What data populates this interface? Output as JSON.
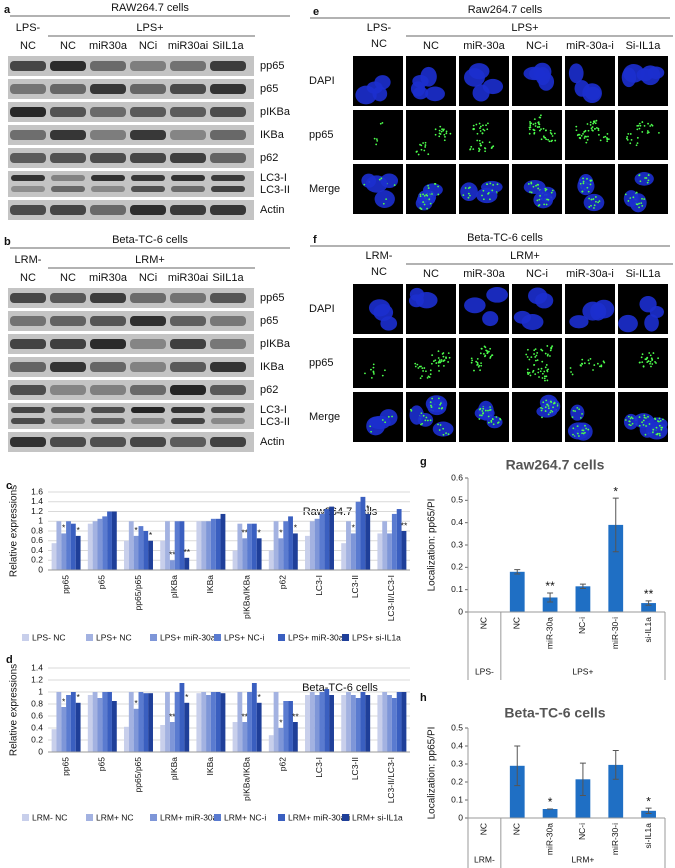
{
  "blots": [
    {
      "letter": "a",
      "title": "RAW264.7 cells",
      "group_labels": [
        "LPS-",
        "LPS+"
      ],
      "lanes": [
        "NC",
        "NC",
        "miR30a",
        "NCi",
        "miR30ai",
        "SiIL1a"
      ],
      "rows": [
        [
          "pp65"
        ],
        [
          "p65"
        ],
        [
          "pIKBa"
        ],
        [
          "IKBa"
        ],
        [
          "p62"
        ],
        [
          "LC3-I",
          "LC3-II"
        ],
        [
          "Actin"
        ]
      ]
    },
    {
      "letter": "b",
      "title": "Beta-TC-6 cells",
      "group_labels": [
        "LRM-",
        "LRM+"
      ],
      "lanes": [
        "NC",
        "NC",
        "miR30a",
        "NCi",
        "miR30ai",
        "SiIL1a"
      ],
      "rows": [
        [
          "pp65"
        ],
        [
          "p65"
        ],
        [
          "pIKBa"
        ],
        [
          "IKBa"
        ],
        [
          "p62"
        ],
        [
          "LC3-I",
          "LC3-II"
        ],
        [
          "Actin"
        ]
      ]
    }
  ],
  "microscopy": [
    {
      "letter": "e",
      "title": "Raw264.7 cells",
      "negative_label": [
        "LPS-",
        "NC"
      ],
      "positive_label": "LPS+",
      "columns": [
        "NC",
        "miR-30a",
        "NC-i",
        "miR-30a-i",
        "Si-IL1a"
      ],
      "rows": [
        "DAPI",
        "pp65",
        "Merge"
      ]
    },
    {
      "letter": "f",
      "title": "Beta-TC-6 cells",
      "negative_label": [
        "LRM-",
        "NC"
      ],
      "positive_label": "LRM+",
      "columns": [
        "NC",
        "miR-30a",
        "NC-i",
        "miR-30a-i",
        "Si-IL1a"
      ],
      "rows": [
        "DAPI",
        "pp65",
        "Merge"
      ]
    }
  ],
  "chart_data": [
    {
      "type": "bar",
      "letter": "c",
      "title": "Raw264.7 cells",
      "y_label": "Relative expressions",
      "categories": [
        "pp65",
        "p65",
        "pp65/p65",
        "pIKBa",
        "IKBa",
        "pIKBa/IKBa",
        "p62",
        "LC3-I",
        "LC3-II",
        "LC3-II/LC3-I"
      ],
      "ylim": [
        0,
        1.6
      ],
      "yticks": [
        0,
        0.2,
        0.4,
        0.6,
        0.8,
        1,
        1.2,
        1.4,
        1.6
      ],
      "grid": true,
      "series": [
        {
          "name": "LPS- NC",
          "color": "#c8cfeb",
          "values": [
            0.55,
            0.95,
            0.6,
            0.6,
            1.0,
            0.4,
            0.4,
            0.7,
            0.55,
            0.75
          ]
        },
        {
          "name": "LPS+ NC",
          "color": "#a3b2e1",
          "values": [
            1.0,
            1.0,
            1.0,
            1.0,
            1.0,
            0.95,
            1.0,
            1.0,
            1.0,
            1.0
          ]
        },
        {
          "name": "LPS+ miR-30a",
          "color": "#7e96d8",
          "values": [
            0.75,
            1.05,
            0.7,
            0.2,
            1.0,
            0.65,
            0.65,
            1.05,
            0.75,
            0.75
          ],
          "stars": [
            "*",
            null,
            "*",
            "**",
            null,
            "**",
            "*",
            null,
            "*",
            null
          ]
        },
        {
          "name": "LPS+ NC-i",
          "color": "#5a7bd0",
          "values": [
            1.0,
            1.1,
            0.9,
            1.0,
            1.05,
            0.95,
            1.0,
            1.15,
            1.4,
            1.15
          ]
        },
        {
          "name": "LPS+ miR-30a-i",
          "color": "#3a5fc0",
          "values": [
            0.95,
            1.2,
            0.8,
            1.0,
            1.05,
            0.95,
            1.1,
            1.25,
            1.5,
            1.25
          ]
        },
        {
          "name": "LPS+ si-IL1a",
          "color": "#1f3f99",
          "values": [
            0.7,
            1.2,
            0.6,
            0.25,
            1.15,
            0.65,
            0.75,
            1.3,
            1.15,
            0.8
          ],
          "stars": [
            "*",
            null,
            "*",
            "**",
            null,
            "*",
            "*",
            null,
            "*",
            "**"
          ]
        }
      ]
    },
    {
      "type": "bar",
      "letter": "d",
      "title": "Beta-TC-6 cells",
      "y_label": "Relative expressions",
      "categories": [
        "pp65",
        "p65",
        "pp65/p65",
        "pIKBa",
        "IKBa",
        "pIKBa/IKBa",
        "p62",
        "LC3-I",
        "LC3-II",
        "LC3-II/LC3-I"
      ],
      "ylim": [
        0,
        1.4
      ],
      "yticks": [
        0,
        0.2,
        0.4,
        0.6,
        0.8,
        1,
        1.2,
        1.4
      ],
      "grid": true,
      "series": [
        {
          "name": "LRM- NC",
          "color": "#c8cfeb",
          "values": [
            0.38,
            0.95,
            0.42,
            0.45,
            0.98,
            0.5,
            0.28,
            0.95,
            0.95,
            0.95
          ]
        },
        {
          "name": "LRM+ NC",
          "color": "#a3b2e1",
          "values": [
            1.0,
            1.0,
            1.0,
            1.0,
            1.0,
            1.0,
            1.0,
            1.0,
            1.0,
            1.0
          ]
        },
        {
          "name": "LRM+ miR-30a",
          "color": "#7e96d8",
          "values": [
            0.75,
            0.9,
            0.72,
            0.5,
            0.95,
            0.5,
            0.4,
            0.95,
            0.95,
            0.95
          ],
          "stars": [
            "*",
            null,
            "*",
            "**",
            null,
            "**",
            "*",
            null,
            null,
            null
          ]
        },
        {
          "name": "LRM+ NC-i",
          "color": "#5a7bd0",
          "values": [
            0.95,
            1.0,
            1.0,
            1.0,
            1.0,
            1.0,
            0.85,
            1.0,
            0.9,
            0.9
          ]
        },
        {
          "name": "LRM+ miR-30a-i",
          "color": "#3a5fc0",
          "values": [
            1.0,
            1.0,
            0.98,
            1.15,
            1.0,
            1.15,
            0.85,
            1.05,
            1.0,
            1.0
          ]
        },
        {
          "name": "LRM+ si-IL1a",
          "color": "#1f3f99",
          "values": [
            0.82,
            0.85,
            0.98,
            0.82,
            0.98,
            0.82,
            0.5,
            0.95,
            0.95,
            1.0
          ],
          "stars": [
            "*",
            null,
            null,
            "*",
            null,
            "*",
            "**",
            null,
            null,
            null
          ]
        }
      ]
    },
    {
      "type": "bar",
      "letter": "g",
      "title": "Raw264.7 cells",
      "y_label": "Localization: pp65/PI",
      "categories": [
        "NC",
        "NC",
        "miR-30a",
        "NC-i",
        "miR-30-i",
        "si-IL1a"
      ],
      "group_labels": [
        "LPS-",
        "LPS+"
      ],
      "color": "#1f6fc4",
      "values": [
        0,
        0.18,
        0.065,
        0.115,
        0.39,
        0.04
      ],
      "errors": [
        0,
        0.01,
        0.02,
        0.01,
        0.12,
        0.01
      ],
      "stars": [
        null,
        null,
        "**",
        null,
        "*",
        "**"
      ],
      "ylim": [
        0,
        0.6
      ],
      "yticks": [
        0,
        0.1,
        0.2,
        0.3,
        0.4,
        0.5,
        0.6
      ],
      "grid": false
    },
    {
      "type": "bar",
      "letter": "h",
      "title": "Beta-TC-6 cells",
      "y_label": "Localization: pp65/PI",
      "categories": [
        "NC",
        "NC",
        "miR-30a",
        "NC-i",
        "miR-30-i",
        "si-IL1a"
      ],
      "group_labels": [
        "LRM-",
        "LRM+"
      ],
      "color": "#1f6fc4",
      "values": [
        0,
        0.29,
        0.05,
        0.215,
        0.295,
        0.04
      ],
      "errors": [
        0,
        0.11,
        0,
        0.09,
        0.08,
        0.015
      ],
      "stars": [
        null,
        null,
        "*",
        null,
        null,
        "*"
      ],
      "ylim": [
        0,
        0.5
      ],
      "yticks": [
        0,
        0.1,
        0.2,
        0.3,
        0.4,
        0.5
      ],
      "grid": false
    }
  ]
}
